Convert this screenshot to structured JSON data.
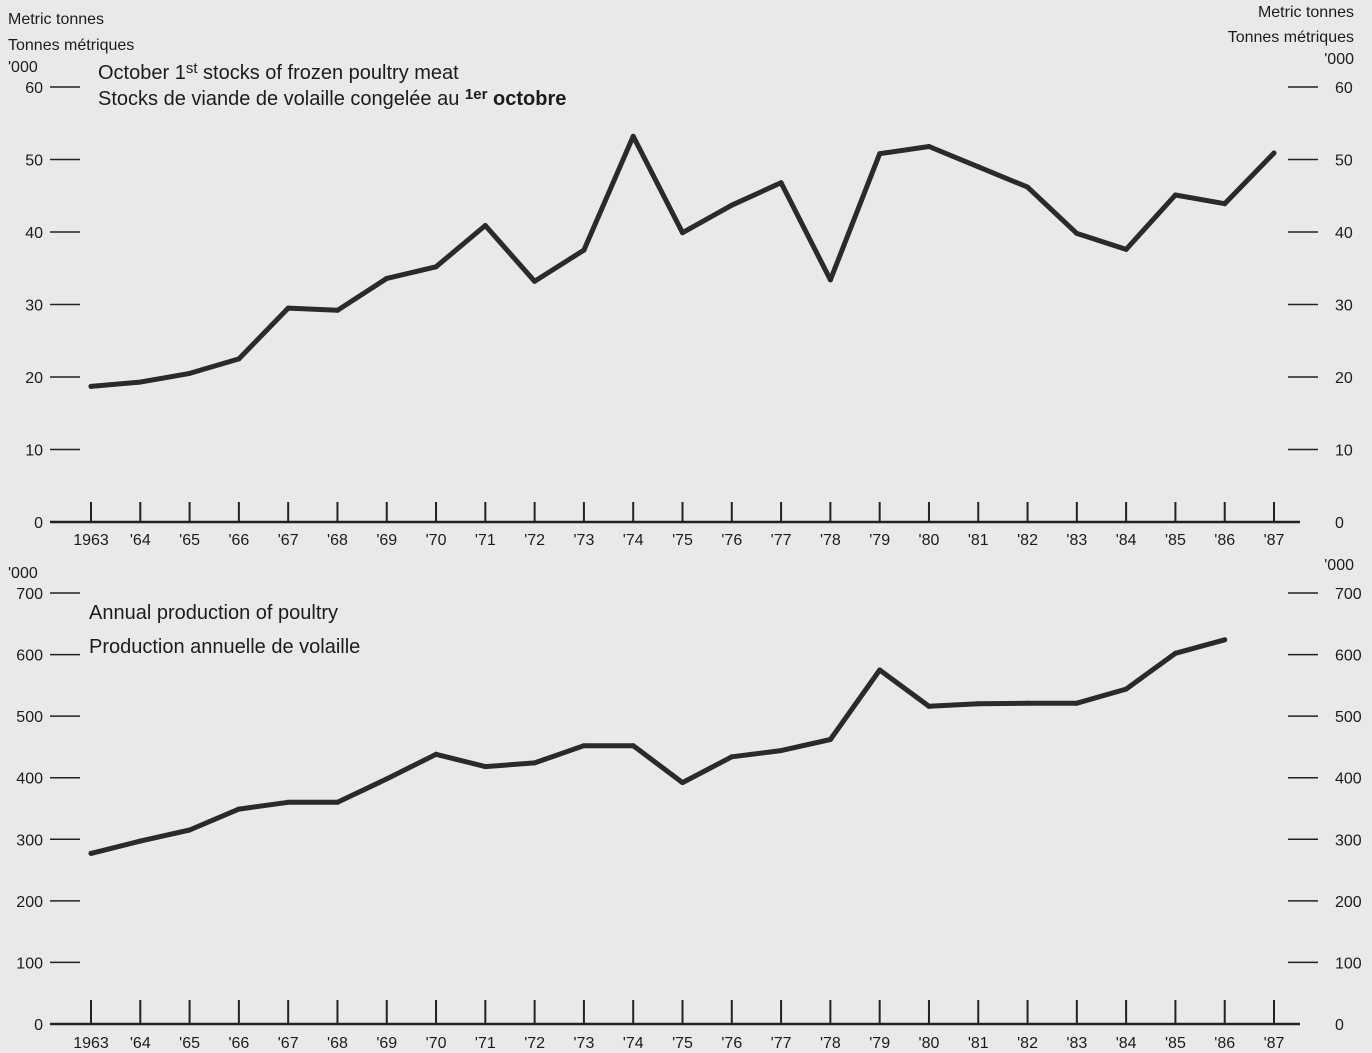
{
  "units": {
    "top_left_en": "Metric tonnes",
    "top_left_fr": "Tonnes métriques",
    "top_left_scale": "'000",
    "top_right_en": "Metric tonnes",
    "top_right_fr": "Tonnes métriques",
    "top_right_scale": "'000",
    "bottom_left_scale": "'000",
    "bottom_right_scale": "'000"
  },
  "chart_data": [
    {
      "type": "line",
      "title": "October 1st stocks of frozen poultry meat",
      "title_fr": "Stocks de viande de volaille congelée au 1er octobre",
      "title_parts": {
        "en_a": "October 1",
        "en_sup": "st",
        "en_b": " stocks of frozen poultry meat",
        "fr_a": "Stocks de viande de volaille congelée au ",
        "fr_sup": "1er",
        "fr_b": " octobre"
      },
      "ylabel": "Metric tonnes / Tonnes métriques ('000)",
      "ylim": [
        0,
        60
      ],
      "yticks": [
        0,
        10,
        20,
        30,
        40,
        50,
        60
      ],
      "x": [
        "1963",
        "'64",
        "'65",
        "'66",
        "'67",
        "'68",
        "'69",
        "'70",
        "'71",
        "'72",
        "'73",
        "'74",
        "'75",
        "'76",
        "'77",
        "'78",
        "'79",
        "'80",
        "'81",
        "'82",
        "'83",
        "'84",
        "'85",
        "'86",
        "'87"
      ],
      "values": [
        18.7,
        19.3,
        20.5,
        22.5,
        29.5,
        29.2,
        33.6,
        35.2,
        40.9,
        33.2,
        37.5,
        53.2,
        39.9,
        43.7,
        46.8,
        33.4,
        50.8,
        51.8,
        49.0,
        46.2,
        39.8,
        37.6,
        45.1,
        43.9,
        50.9
      ],
      "grid": false
    },
    {
      "type": "line",
      "title": "Annual production of poultry",
      "title_fr": "Production annuelle de volaille",
      "ylabel": "'000",
      "ylim": [
        0,
        700
      ],
      "yticks": [
        0,
        100,
        200,
        300,
        400,
        500,
        600,
        700
      ],
      "x": [
        "1963",
        "'64",
        "'65",
        "'66",
        "'67",
        "'68",
        "'69",
        "'70",
        "'71",
        "'72",
        "'73",
        "'74",
        "'75",
        "'76",
        "'77",
        "'78",
        "'79",
        "'80",
        "'81",
        "'82",
        "'83",
        "'84",
        "'85",
        "'86",
        "'87"
      ],
      "values": [
        277,
        297,
        315,
        349,
        360,
        360,
        398,
        438,
        418,
        424,
        452,
        452,
        392,
        434,
        444,
        462,
        575,
        516,
        520,
        521,
        521,
        544,
        602,
        624,
        null
      ],
      "grid": false
    }
  ]
}
